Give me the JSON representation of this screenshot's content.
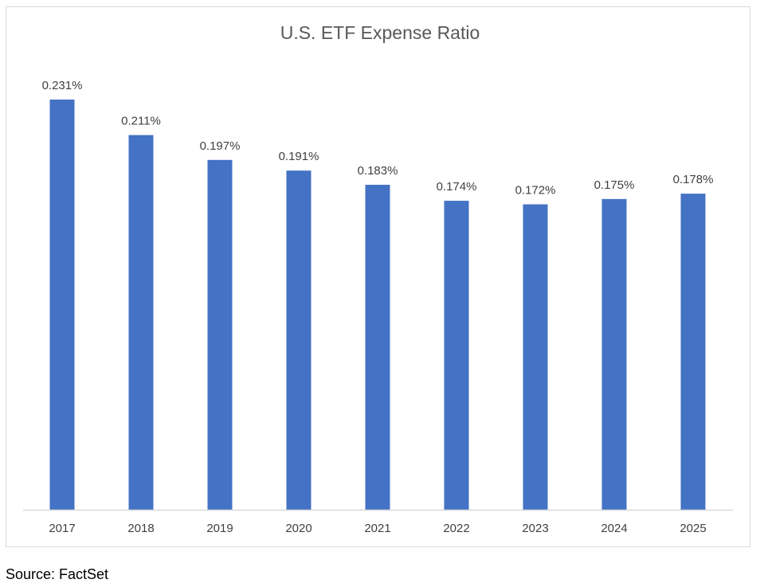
{
  "chart_data": {
    "type": "bar",
    "title": "U.S. ETF Expense Ratio",
    "categories": [
      "2017",
      "2018",
      "2019",
      "2020",
      "2021",
      "2022",
      "2023",
      "2024",
      "2025"
    ],
    "values": [
      0.231,
      0.211,
      0.197,
      0.191,
      0.183,
      0.174,
      0.172,
      0.175,
      0.178
    ],
    "data_labels": [
      "0.231%",
      "0.211%",
      "0.197%",
      "0.191%",
      "0.183%",
      "0.174%",
      "0.172%",
      "0.175%",
      "0.178%"
    ],
    "unit": "%",
    "ylim": [
      0,
      0.25
    ],
    "grid": false,
    "legend": "none",
    "bar_color": "#4472C4",
    "axis_color": "#d9d9d9"
  },
  "source": "Source: FactSet"
}
